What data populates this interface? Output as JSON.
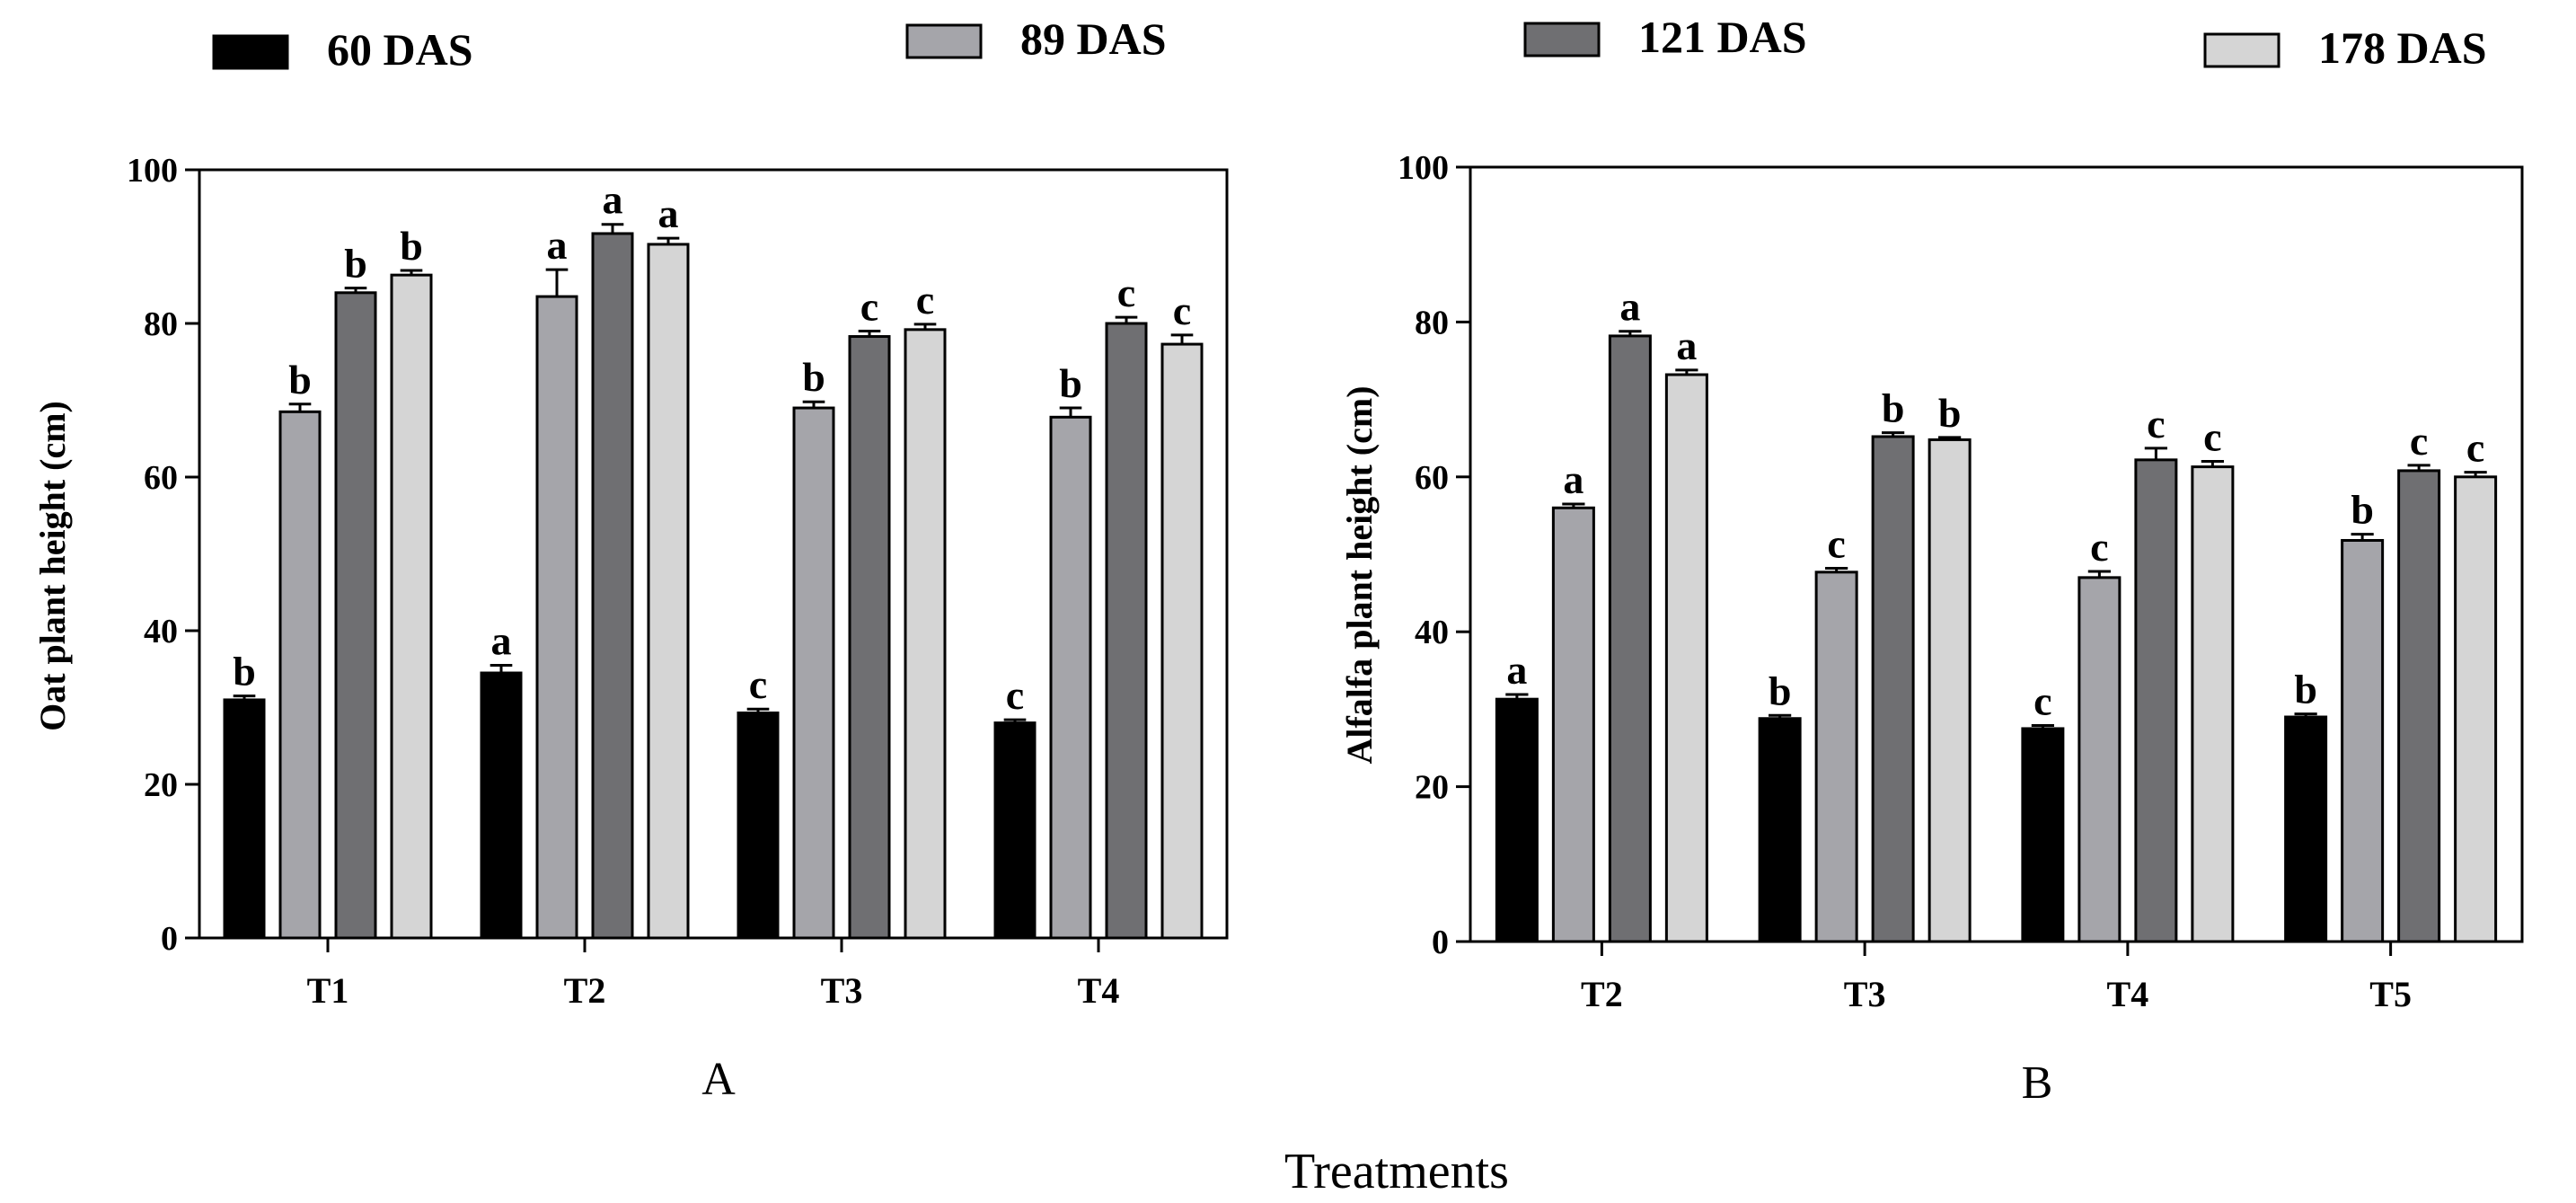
{
  "legend": [
    {
      "label": "60 DAS",
      "color": "#000000"
    },
    {
      "label": "89 DAS",
      "color": "#a5a5aa"
    },
    {
      "label": "121 DAS",
      "color": "#6f6f72"
    },
    {
      "label": "178 DAS",
      "color": "#d5d5d5"
    }
  ],
  "shared_xlabel": "Treatments",
  "chart_data": [
    {
      "type": "bar",
      "panel": "A",
      "categories": [
        "T1",
        "T2",
        "T3",
        "T4"
      ],
      "ylabel": "Oat plant height (cm)",
      "ylim": [
        0,
        100
      ],
      "yticks": [
        0,
        20,
        40,
        60,
        80,
        100
      ],
      "grid": false,
      "legend_position": "top",
      "series": [
        {
          "name": "60 DAS",
          "values": [
            31,
            34.5,
            29.3,
            28
          ],
          "errors": [
            0.5,
            1,
            0.5,
            0.4
          ],
          "labels": [
            "b",
            "a",
            "c",
            "c"
          ]
        },
        {
          "name": "89 DAS",
          "values": [
            68.5,
            83.5,
            69,
            67.8
          ],
          "errors": [
            1,
            3.5,
            0.8,
            1.2
          ],
          "labels": [
            "b",
            "a",
            "b",
            "b"
          ]
        },
        {
          "name": "121 DAS",
          "values": [
            84,
            91.7,
            78.3,
            80
          ],
          "errors": [
            0.6,
            1.2,
            0.7,
            0.8
          ],
          "labels": [
            "b",
            "a",
            "c",
            "c"
          ]
        },
        {
          "name": "178 DAS",
          "values": [
            86.3,
            90.3,
            79.2,
            77.3
          ],
          "errors": [
            0.6,
            0.8,
            0.7,
            1.2
          ],
          "labels": [
            "b",
            "a",
            "c",
            "c"
          ]
        }
      ]
    },
    {
      "type": "bar",
      "panel": "B",
      "categories": [
        "T2",
        "T3",
        "T4",
        "T5"
      ],
      "ylabel": "Alfalfa plant height (cm)",
      "ylim": [
        0,
        100
      ],
      "yticks": [
        0,
        20,
        40,
        60,
        80,
        100
      ],
      "grid": false,
      "legend_position": "top",
      "series": [
        {
          "name": "60 DAS",
          "values": [
            31.3,
            28.8,
            27.5,
            29
          ],
          "errors": [
            0.6,
            0.4,
            0.4,
            0.4
          ],
          "labels": [
            "a",
            "b",
            "c",
            "b"
          ]
        },
        {
          "name": "89 DAS",
          "values": [
            56,
            47.7,
            47,
            51.8
          ],
          "errors": [
            0.5,
            0.5,
            0.8,
            0.8
          ],
          "labels": [
            "a",
            "c",
            "c",
            "b"
          ]
        },
        {
          "name": "121 DAS",
          "values": [
            78.2,
            65.2,
            62.2,
            60.8
          ],
          "errors": [
            0.6,
            0.5,
            1.5,
            0.7
          ],
          "labels": [
            "a",
            "b",
            "c",
            "c"
          ]
        },
        {
          "name": "178 DAS",
          "values": [
            73.2,
            64.8,
            61.3,
            60
          ],
          "errors": [
            0.6,
            0.3,
            0.7,
            0.6
          ],
          "labels": [
            "a",
            "b",
            "c",
            "c"
          ]
        }
      ]
    }
  ]
}
